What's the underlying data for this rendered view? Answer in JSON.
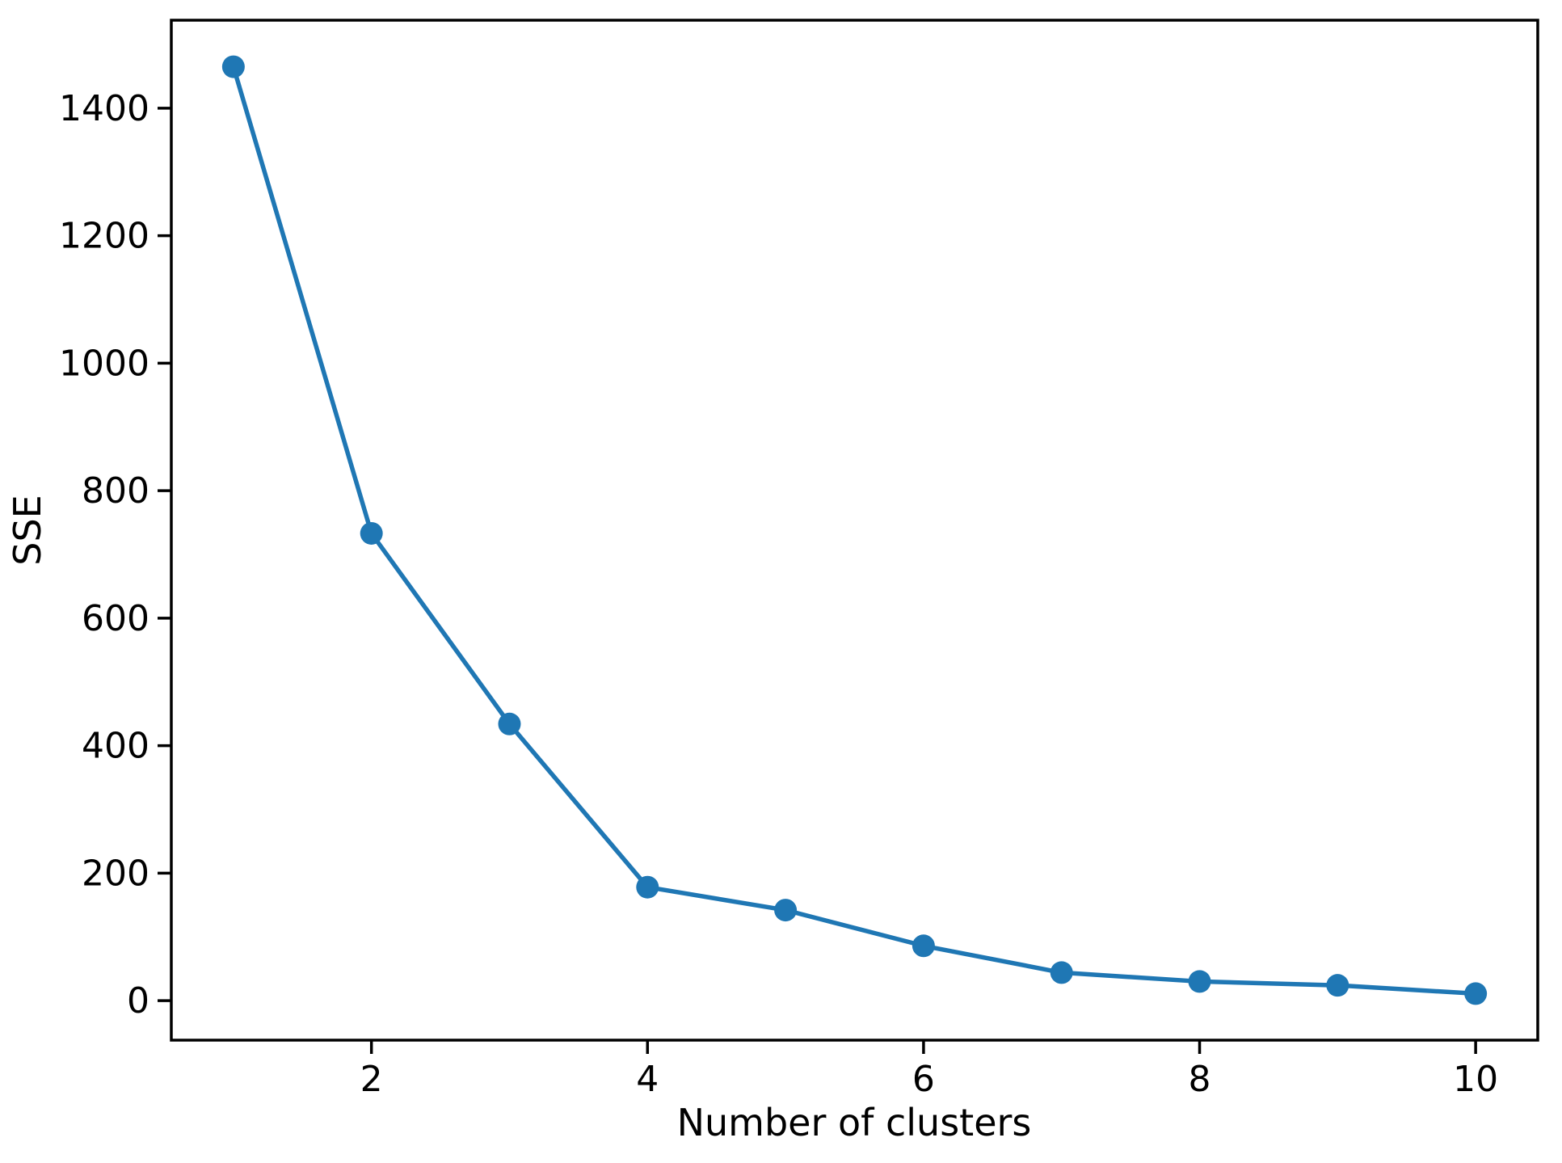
{
  "figure": {
    "background_color": "#ffffff",
    "axis_color": "#000000",
    "text_color": "#000000"
  },
  "chart_data": {
    "type": "line",
    "title": "",
    "xlabel": "Number of clusters",
    "ylabel": "SSE",
    "x": [
      1,
      2,
      3,
      4,
      5,
      6,
      7,
      8,
      9,
      10
    ],
    "series": [
      {
        "name": "SSE",
        "values": [
          1465,
          733,
          434,
          178,
          142,
          86,
          44,
          30,
          24,
          11
        ]
      }
    ],
    "xticks": [
      2,
      4,
      6,
      8,
      10
    ],
    "yticks": [
      0,
      200,
      400,
      600,
      800,
      1000,
      1200,
      1400
    ],
    "xlim": [
      0.55,
      10.45
    ],
    "ylim": [
      -62,
      1538
    ],
    "grid": false,
    "legend_position": "none",
    "line_color": "#1f77b4",
    "marker": "circle"
  }
}
